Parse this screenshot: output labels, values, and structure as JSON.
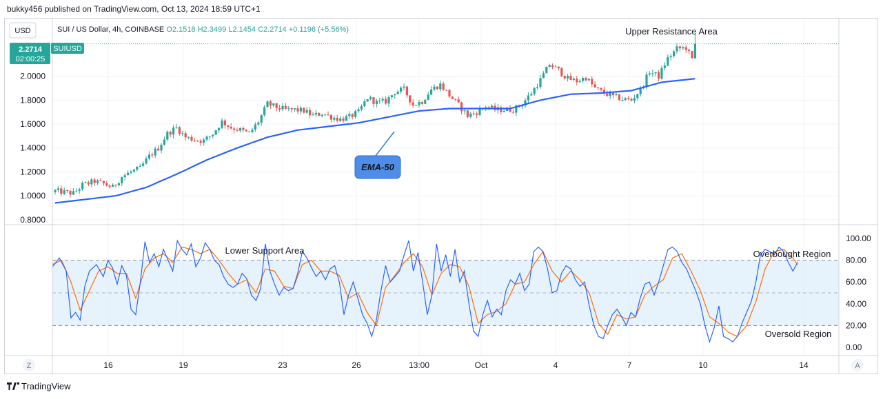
{
  "header": {
    "published": "bukky456 published on TradingView.com, Oct 13, 2024 18:59 UTC+1"
  },
  "footer": {
    "brand": "TradingView"
  },
  "colors": {
    "up": "#26a69a",
    "down": "#ef5350",
    "ema": "#2962ff",
    "k_line": "#2962ff",
    "d_line": "#ff6d00",
    "accent": "#2a7fd4",
    "band": "#ddeefb"
  },
  "chart_data": [
    {
      "type": "candlestick",
      "legend": {
        "currency": "USD",
        "symbol": "SUI / US Dollar, 4h, COINBASE",
        "open": "O2.1518",
        "high": "H2.3499",
        "low": "L2.1454",
        "close": "C2.2714",
        "change": "+0.1196 (+5.56%)"
      },
      "price_tag": {
        "price": "2.2714",
        "countdown": "02:00:25",
        "symbol": "SUIUSD"
      },
      "ylim": [
        0.78,
        2.43
      ],
      "y_ticks": [
        "2.0000",
        "1.8000",
        "1.6000",
        "1.4000",
        "1.2000",
        "1.0000",
        "0.8000"
      ],
      "x_ticks": [
        "16",
        "19",
        "23",
        "26",
        "13:00",
        "Oct",
        "4",
        "7",
        "10",
        "14"
      ],
      "annotations": {
        "upper_resistance": "Upper Resistance Area",
        "ema_label": "EMA-50"
      },
      "price_anchors": [
        [
          0,
          1.04
        ],
        [
          3,
          1.03
        ],
        [
          6,
          1.02
        ],
        [
          9,
          1.09
        ],
        [
          13,
          1.12
        ],
        [
          16,
          1.1
        ],
        [
          19,
          1.07
        ],
        [
          22,
          1.16
        ],
        [
          25,
          1.2
        ],
        [
          28,
          1.23
        ],
        [
          31,
          1.33
        ],
        [
          34,
          1.4
        ],
        [
          37,
          1.52
        ],
        [
          40,
          1.57
        ],
        [
          43,
          1.49
        ],
        [
          46,
          1.47
        ],
        [
          49,
          1.46
        ],
        [
          52,
          1.52
        ],
        [
          55,
          1.62
        ],
        [
          58,
          1.57
        ],
        [
          61,
          1.55
        ],
        [
          64,
          1.52
        ],
        [
          67,
          1.62
        ],
        [
          70,
          1.77
        ],
        [
          73,
          1.74
        ],
        [
          76,
          1.72
        ],
        [
          79,
          1.72
        ],
        [
          82,
          1.71
        ],
        [
          85,
          1.67
        ],
        [
          88,
          1.69
        ],
        [
          91,
          1.66
        ],
        [
          94,
          1.64
        ],
        [
          97,
          1.66
        ],
        [
          100,
          1.7
        ],
        [
          103,
          1.82
        ],
        [
          106,
          1.78
        ],
        [
          109,
          1.79
        ],
        [
          112,
          1.87
        ],
        [
          115,
          1.89
        ],
        [
          118,
          1.76
        ],
        [
          121,
          1.79
        ],
        [
          124,
          1.89
        ],
        [
          127,
          1.93
        ],
        [
          130,
          1.84
        ],
        [
          133,
          1.76
        ],
        [
          136,
          1.67
        ],
        [
          139,
          1.7
        ],
        [
          142,
          1.75
        ],
        [
          145,
          1.72
        ],
        [
          148,
          1.72
        ],
        [
          151,
          1.72
        ],
        [
          154,
          1.77
        ],
        [
          157,
          1.86
        ],
        [
          160,
          1.97
        ],
        [
          163,
          2.1
        ],
        [
          166,
          2.05
        ],
        [
          169,
          1.98
        ],
        [
          172,
          1.96
        ],
        [
          175,
          1.99
        ],
        [
          178,
          1.9
        ],
        [
          181,
          1.86
        ],
        [
          184,
          1.83
        ],
        [
          187,
          1.81
        ],
        [
          190,
          1.8
        ],
        [
          193,
          1.89
        ],
        [
          196,
          2.04
        ],
        [
          199,
          2.0
        ],
        [
          202,
          2.15
        ],
        [
          205,
          2.23
        ],
        [
          208,
          2.24
        ],
        [
          210,
          2.14
        ],
        [
          211,
          2.27
        ]
      ],
      "ema50_anchors": [
        [
          0,
          0.94
        ],
        [
          10,
          0.97
        ],
        [
          20,
          1.0
        ],
        [
          30,
          1.07
        ],
        [
          40,
          1.18
        ],
        [
          50,
          1.3
        ],
        [
          60,
          1.4
        ],
        [
          70,
          1.49
        ],
        [
          80,
          1.55
        ],
        [
          90,
          1.58
        ],
        [
          100,
          1.61
        ],
        [
          110,
          1.66
        ],
        [
          120,
          1.71
        ],
        [
          130,
          1.73
        ],
        [
          140,
          1.73
        ],
        [
          150,
          1.73
        ],
        [
          160,
          1.8
        ],
        [
          170,
          1.85
        ],
        [
          180,
          1.86
        ],
        [
          190,
          1.88
        ],
        [
          200,
          1.95
        ],
        [
          211,
          1.98
        ]
      ]
    },
    {
      "type": "line",
      "indicator": "Stochastic RSI",
      "ylim": [
        -5,
        112
      ],
      "y_ticks": [
        "100.00",
        "80.00",
        "60.00",
        "40.00",
        "20.00",
        "0.00"
      ],
      "levels": {
        "upper": 80,
        "middle": 50,
        "lower": 20
      },
      "annotations": {
        "lower_support": "Lower Support Area",
        "overbought": "Overbought Region",
        "oversold": "Oversold Region"
      },
      "k_series": [
        [
          0,
          74
        ],
        [
          3,
          82
        ],
        [
          6,
          70
        ],
        [
          8,
          27
        ],
        [
          10,
          32
        ],
        [
          12,
          25
        ],
        [
          14,
          56
        ],
        [
          16,
          70
        ],
        [
          19,
          76
        ],
        [
          22,
          65
        ],
        [
          24,
          80
        ],
        [
          26,
          73
        ],
        [
          28,
          58
        ],
        [
          30,
          75
        ],
        [
          32,
          66
        ],
        [
          34,
          35
        ],
        [
          36,
          30
        ],
        [
          38,
          60
        ],
        [
          40,
          97
        ],
        [
          42,
          78
        ],
        [
          44,
          86
        ],
        [
          46,
          74
        ],
        [
          48,
          90
        ],
        [
          50,
          80
        ],
        [
          52,
          70
        ],
        [
          54,
          98
        ],
        [
          56,
          90
        ],
        [
          58,
          85
        ],
        [
          60,
          95
        ],
        [
          62,
          74
        ],
        [
          64,
          82
        ],
        [
          66,
          96
        ],
        [
          68,
          90
        ],
        [
          70,
          80
        ],
        [
          72,
          76
        ],
        [
          74,
          65
        ],
        [
          76,
          58
        ],
        [
          78,
          55
        ],
        [
          80,
          58
        ],
        [
          82,
          68
        ],
        [
          84,
          63
        ],
        [
          86,
          48
        ],
        [
          88,
          43
        ],
        [
          90,
          54
        ],
        [
          92,
          95
        ],
        [
          94,
          70
        ],
        [
          96,
          58
        ],
        [
          98,
          48
        ],
        [
          100,
          55
        ],
        [
          102,
          52
        ],
        [
          104,
          54
        ],
        [
          106,
          68
        ],
        [
          108,
          88
        ],
        [
          110,
          82
        ],
        [
          112,
          73
        ],
        [
          114,
          65
        ],
        [
          116,
          70
        ],
        [
          118,
          62
        ],
        [
          120,
          72
        ],
        [
          122,
          75
        ],
        [
          124,
          60
        ],
        [
          126,
          30
        ],
        [
          128,
          48
        ],
        [
          130,
          60
        ],
        [
          132,
          45
        ],
        [
          134,
          30
        ],
        [
          136,
          22
        ],
        [
          138,
          10
        ],
        [
          140,
          25
        ],
        [
          142,
          52
        ],
        [
          144,
          75
        ],
        [
          146,
          60
        ],
        [
          148,
          65
        ],
        [
          150,
          70
        ],
        [
          152,
          85
        ],
        [
          154,
          98
        ],
        [
          156,
          70
        ],
        [
          158,
          87
        ],
        [
          160,
          60
        ],
        [
          162,
          30
        ],
        [
          164,
          48
        ],
        [
          166,
          95
        ],
        [
          168,
          70
        ],
        [
          170,
          85
        ],
        [
          172,
          65
        ],
        [
          174,
          90
        ],
        [
          176,
          60
        ],
        [
          178,
          70
        ],
        [
          180,
          40
        ],
        [
          182,
          15
        ],
        [
          184,
          10
        ],
        [
          186,
          30
        ],
        [
          188,
          43
        ],
        [
          190,
          28
        ],
        [
          192,
          35
        ],
        [
          194,
          30
        ],
        [
          196,
          52
        ],
        [
          198,
          62
        ],
        [
          200,
          58
        ],
        [
          202,
          68
        ],
        [
          204,
          52
        ],
        [
          206,
          58
        ],
        [
          208,
          88
        ],
        [
          210,
          92
        ],
        [
          212,
          88
        ],
        [
          214,
          72
        ],
        [
          216,
          50
        ],
        [
          218,
          52
        ],
        [
          220,
          68
        ],
        [
          222,
          75
        ],
        [
          224,
          72
        ],
        [
          226,
          62
        ],
        [
          228,
          56
        ],
        [
          230,
          60
        ],
        [
          232,
          38
        ],
        [
          234,
          20
        ],
        [
          236,
          10
        ],
        [
          238,
          8
        ],
        [
          240,
          20
        ],
        [
          242,
          30
        ],
        [
          244,
          35
        ],
        [
          246,
          28
        ],
        [
          248,
          20
        ],
        [
          250,
          32
        ],
        [
          252,
          28
        ],
        [
          254,
          45
        ],
        [
          256,
          58
        ],
        [
          258,
          60
        ],
        [
          260,
          48
        ],
        [
          262,
          60
        ],
        [
          264,
          75
        ],
        [
          266,
          90
        ],
        [
          268,
          92
        ],
        [
          270,
          88
        ],
        [
          272,
          78
        ],
        [
          274,
          72
        ],
        [
          276,
          62
        ],
        [
          278,
          52
        ],
        [
          280,
          40
        ],
        [
          282,
          20
        ],
        [
          284,
          5
        ],
        [
          286,
          18
        ],
        [
          288,
          38
        ],
        [
          290,
          10
        ],
        [
          292,
          8
        ],
        [
          294,
          5
        ],
        [
          296,
          10
        ],
        [
          298,
          22
        ],
        [
          300,
          32
        ],
        [
          302,
          42
        ],
        [
          304,
          60
        ],
        [
          306,
          85
        ],
        [
          308,
          90
        ],
        [
          310,
          88
        ],
        [
          312,
          85
        ],
        [
          314,
          92
        ],
        [
          316,
          88
        ],
        [
          318,
          78
        ],
        [
          320,
          70
        ],
        [
          322,
          78
        ]
      ],
      "d_series": [
        [
          0,
          76
        ],
        [
          4,
          80
        ],
        [
          8,
          60
        ],
        [
          12,
          34
        ],
        [
          16,
          52
        ],
        [
          20,
          70
        ],
        [
          24,
          74
        ],
        [
          28,
          68
        ],
        [
          32,
          68
        ],
        [
          36,
          45
        ],
        [
          40,
          72
        ],
        [
          44,
          82
        ],
        [
          48,
          86
        ],
        [
          52,
          78
        ],
        [
          56,
          92
        ],
        [
          60,
          90
        ],
        [
          64,
          86
        ],
        [
          68,
          90
        ],
        [
          72,
          80
        ],
        [
          76,
          68
        ],
        [
          80,
          58
        ],
        [
          84,
          62
        ],
        [
          88,
          50
        ],
        [
          92,
          72
        ],
        [
          96,
          70
        ],
        [
          100,
          56
        ],
        [
          104,
          54
        ],
        [
          108,
          76
        ],
        [
          112,
          80
        ],
        [
          116,
          70
        ],
        [
          120,
          70
        ],
        [
          124,
          66
        ],
        [
          128,
          45
        ],
        [
          132,
          50
        ],
        [
          136,
          32
        ],
        [
          140,
          20
        ],
        [
          144,
          55
        ],
        [
          148,
          66
        ],
        [
          152,
          78
        ],
        [
          156,
          86
        ],
        [
          160,
          74
        ],
        [
          164,
          48
        ],
        [
          168,
          68
        ],
        [
          172,
          76
        ],
        [
          176,
          74
        ],
        [
          180,
          56
        ],
        [
          184,
          22
        ],
        [
          188,
          30
        ],
        [
          192,
          33
        ],
        [
          196,
          40
        ],
        [
          200,
          58
        ],
        [
          204,
          60
        ],
        [
          208,
          76
        ],
        [
          212,
          88
        ],
        [
          216,
          70
        ],
        [
          220,
          60
        ],
        [
          224,
          70
        ],
        [
          228,
          62
        ],
        [
          232,
          50
        ],
        [
          236,
          22
        ],
        [
          240,
          12
        ],
        [
          244,
          30
        ],
        [
          248,
          26
        ],
        [
          252,
          28
        ],
        [
          256,
          48
        ],
        [
          260,
          56
        ],
        [
          264,
          62
        ],
        [
          268,
          82
        ],
        [
          272,
          86
        ],
        [
          276,
          70
        ],
        [
          280,
          52
        ],
        [
          284,
          28
        ],
        [
          288,
          22
        ],
        [
          292,
          14
        ],
        [
          296,
          10
        ],
        [
          300,
          20
        ],
        [
          304,
          42
        ],
        [
          308,
          72
        ],
        [
          312,
          88
        ],
        [
          316,
          90
        ],
        [
          320,
          82
        ],
        [
          322,
          76
        ]
      ]
    }
  ]
}
